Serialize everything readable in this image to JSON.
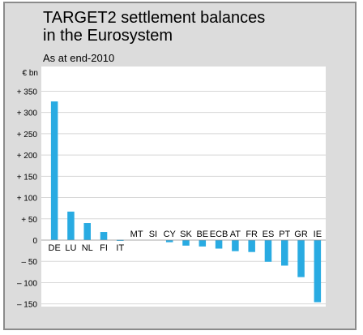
{
  "header": {
    "title_line1": "TARGET2 settlement balances",
    "title_line2": "in the Eurosystem",
    "subtitle": "As at end-2010"
  },
  "colors": {
    "panel_bg": "#dcdcdc",
    "plot_bg": "#ffffff",
    "bar": "#29abe2",
    "grid": "#d7d7d7"
  },
  "chart_data": {
    "type": "bar",
    "title": "TARGET2 settlement balances in the Eurosystem",
    "subtitle": "As at end-2010",
    "ylabel": "€ bn",
    "ylim": [
      -160,
      360
    ],
    "yticks": [
      -150,
      -100,
      -50,
      0,
      50,
      100,
      150,
      200,
      250,
      300,
      350
    ],
    "ytick_labels": [
      "– 150",
      "– 100",
      "– 50",
      "0",
      "+ 50",
      "+ 100",
      "+ 150",
      "+ 200",
      "+ 250",
      "+ 300",
      "+ 350"
    ],
    "grid": true,
    "categories": [
      "DE",
      "LU",
      "NL",
      "FI",
      "IT",
      "MT",
      "SI",
      "CY",
      "SK",
      "BE",
      "ECB",
      "AT",
      "FR",
      "ES",
      "PT",
      "GR",
      "IE"
    ],
    "values": [
      326,
      67,
      40,
      19,
      1,
      0,
      0,
      -5,
      -13,
      -15,
      -20,
      -26,
      -28,
      -51,
      -60,
      -87,
      -146
    ]
  }
}
